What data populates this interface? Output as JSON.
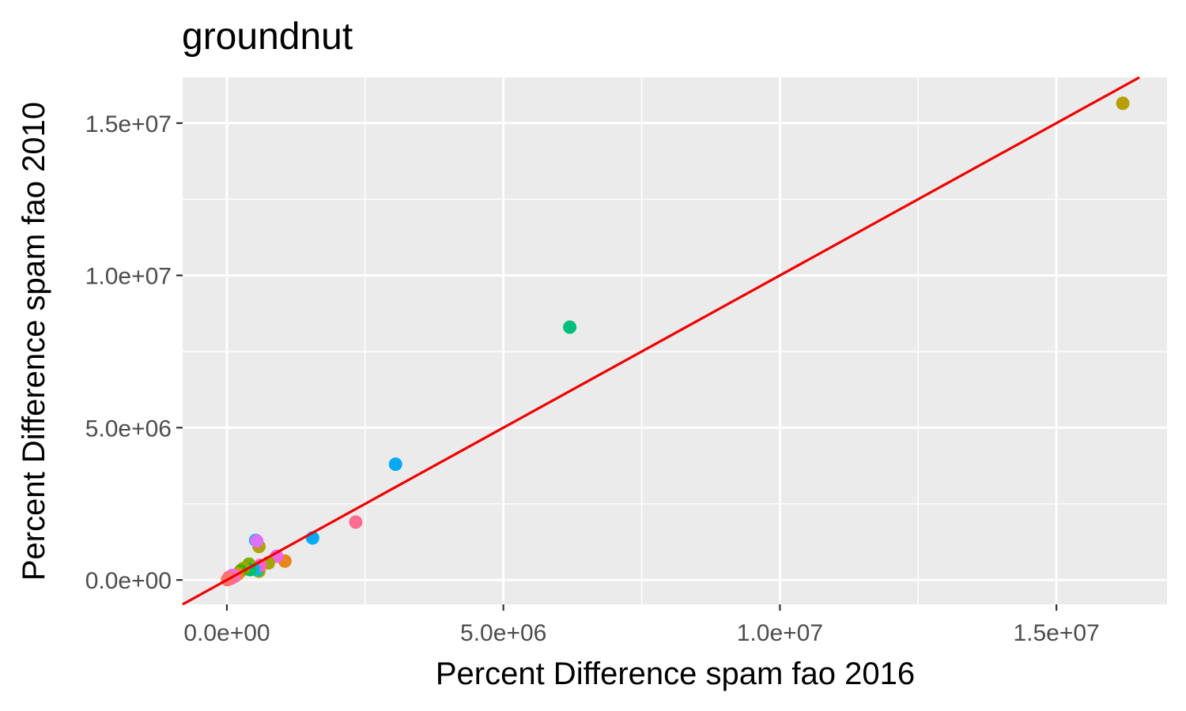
{
  "chart_data": {
    "type": "scatter",
    "title": "groundnut",
    "xlabel": "Percent Difference spam fao 2016",
    "ylabel": "Percent Difference spam fao 2010",
    "xlim": [
      -800000,
      17000000
    ],
    "ylim": [
      -800000,
      16500000
    ],
    "x_ticks": [
      0,
      5000000,
      10000000,
      15000000
    ],
    "x_tick_labels": [
      "0.0e+00",
      "5.0e+06",
      "1.0e+07",
      "1.5e+07"
    ],
    "y_ticks": [
      0,
      5000000,
      10000000,
      15000000
    ],
    "y_tick_labels": [
      "0.0e+00",
      "5.0e+06",
      "1.0e+07",
      "1.5e+07"
    ],
    "grid": true,
    "background": "#ebebeb",
    "reference_line": {
      "type": "identity",
      "slope": 1,
      "intercept": 0,
      "color": "#ee0000"
    },
    "points": [
      {
        "x": 16200000,
        "y": 15650000,
        "color": "#b5a000"
      },
      {
        "x": 6200000,
        "y": 8300000,
        "color": "#00bf7d"
      },
      {
        "x": 3050000,
        "y": 3800000,
        "color": "#00a9f4"
      },
      {
        "x": 2330000,
        "y": 1900000,
        "color": "#ff6c91"
      },
      {
        "x": 1550000,
        "y": 1380000,
        "color": "#00a9f4"
      },
      {
        "x": 1050000,
        "y": 620000,
        "color": "#e7861b"
      },
      {
        "x": 900000,
        "y": 780000,
        "color": "#f564e3"
      },
      {
        "x": 750000,
        "y": 560000,
        "color": "#a3a500"
      },
      {
        "x": 580000,
        "y": 1100000,
        "color": "#b5a000"
      },
      {
        "x": 520000,
        "y": 1300000,
        "color": "#00bbda"
      },
      {
        "x": 540000,
        "y": 1280000,
        "color": "#dc71fa"
      },
      {
        "x": 580000,
        "y": 290000,
        "color": "#b5a000"
      },
      {
        "x": 550000,
        "y": 330000,
        "color": "#00c1a3"
      },
      {
        "x": 600000,
        "y": 480000,
        "color": "#ff61c3"
      },
      {
        "x": 480000,
        "y": 380000,
        "color": "#00b0f6"
      },
      {
        "x": 400000,
        "y": 520000,
        "color": "#7cae00"
      },
      {
        "x": 420000,
        "y": 340000,
        "color": "#00be67"
      },
      {
        "x": 300000,
        "y": 380000,
        "color": "#a3a500"
      },
      {
        "x": 250000,
        "y": 300000,
        "color": "#39b600"
      },
      {
        "x": 200000,
        "y": 200000,
        "color": "#d89000"
      },
      {
        "x": 150000,
        "y": 130000,
        "color": "#f8766d"
      },
      {
        "x": 100000,
        "y": 150000,
        "color": "#e76bf3"
      },
      {
        "x": 80000,
        "y": 60000,
        "color": "#fd61d1"
      },
      {
        "x": 40000,
        "y": 90000,
        "color": "#ff6a98"
      },
      {
        "x": 20000,
        "y": 30000,
        "color": "#f8766d"
      },
      {
        "x": 10000,
        "y": 10000,
        "color": "#f8766d"
      }
    ]
  }
}
